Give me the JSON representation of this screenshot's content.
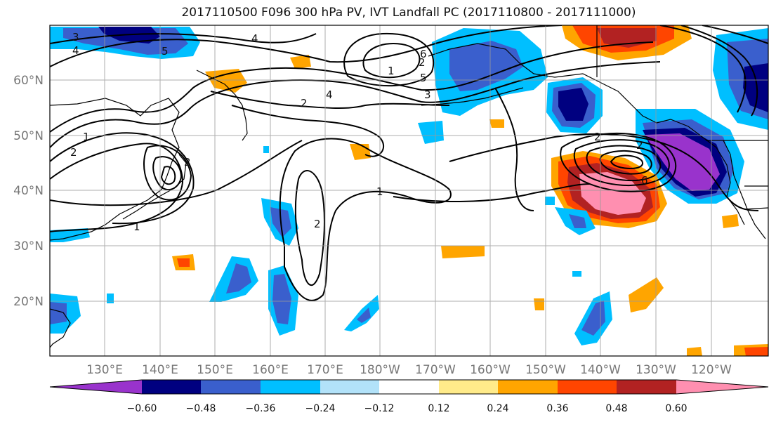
{
  "title": "2017110500 F096 300 hPa PV, IVT Landfall PC (2017110800 - 2017111000)",
  "map": {
    "lon_labels": [
      "130°E",
      "140°E",
      "150°E",
      "160°E",
      "170°E",
      "180°W",
      "170°W",
      "160°W",
      "150°W",
      "140°W",
      "130°W",
      "120°W"
    ],
    "lat_labels": [
      "60°N",
      "50°N",
      "40°N",
      "30°N",
      "20°N"
    ],
    "contour_labels": [
      "3",
      "4",
      "5",
      "4",
      "1",
      "2",
      "3",
      "4",
      "5",
      "6",
      "2",
      "1",
      "2",
      "2",
      "1",
      "2",
      "1",
      "6",
      "2",
      "2"
    ],
    "colorbar": {
      "ticks": [
        "−0.60",
        "−0.48",
        "−0.36",
        "−0.24",
        "−0.12",
        "0.12",
        "0.24",
        "0.36",
        "0.48",
        "0.60"
      ],
      "colors": [
        "#9933cc",
        "#000080",
        "#3a5fcd",
        "#00bfff",
        "#b2e2f9",
        "#ffffff",
        "#ffeb8a",
        "#ffa500",
        "#ff4500",
        "#b22222",
        "#ff8fb0"
      ]
    }
  }
}
